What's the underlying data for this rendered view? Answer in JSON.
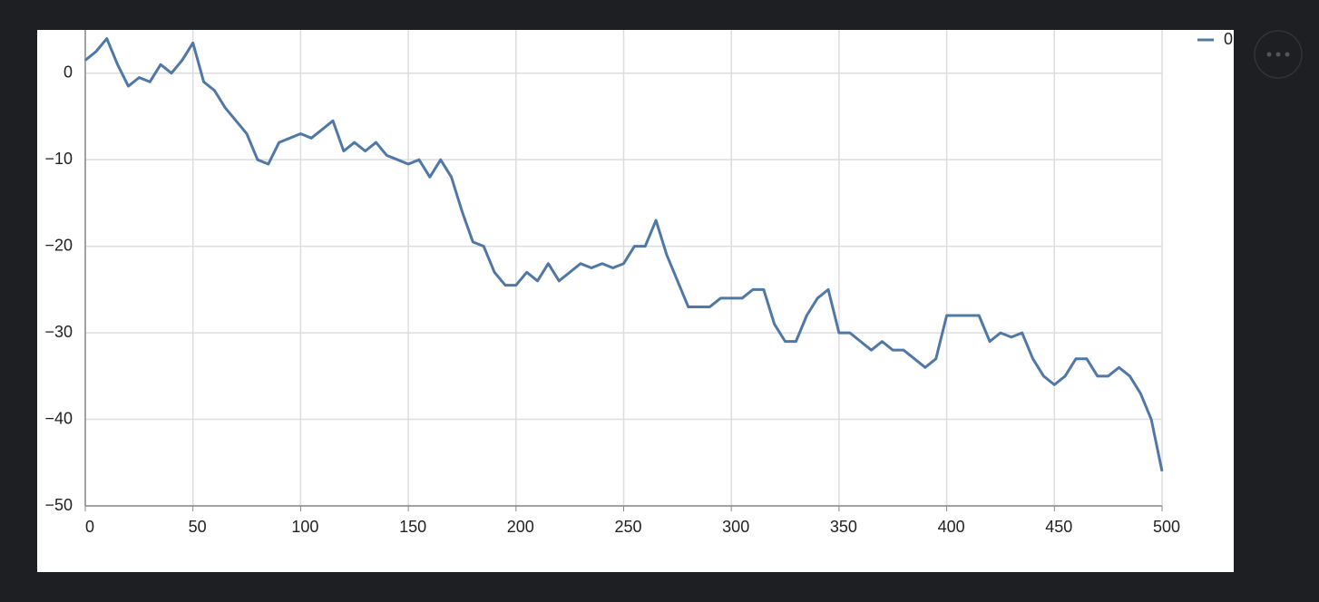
{
  "chart_data": {
    "type": "line",
    "x": [
      0,
      5,
      10,
      15,
      20,
      25,
      30,
      35,
      40,
      45,
      50,
      55,
      60,
      65,
      70,
      75,
      80,
      85,
      90,
      95,
      100,
      105,
      110,
      115,
      120,
      125,
      130,
      135,
      140,
      145,
      150,
      155,
      160,
      165,
      170,
      175,
      180,
      185,
      190,
      195,
      200,
      205,
      210,
      215,
      220,
      225,
      230,
      235,
      240,
      245,
      250,
      255,
      260,
      265,
      270,
      275,
      280,
      285,
      290,
      295,
      300,
      305,
      310,
      315,
      320,
      325,
      330,
      335,
      340,
      345,
      350,
      355,
      360,
      365,
      370,
      375,
      380,
      385,
      390,
      395,
      400,
      405,
      410,
      415,
      420,
      425,
      430,
      435,
      440,
      445,
      450,
      455,
      460,
      465,
      470,
      475,
      480,
      485,
      490,
      495,
      500
    ],
    "series": [
      {
        "name": "0",
        "color": "#5078a6",
        "values": [
          1.5,
          2.5,
          4,
          1,
          -1.5,
          -0.5,
          -1,
          1,
          0,
          1.5,
          3.5,
          -1,
          -2,
          -4,
          -5.5,
          -7,
          -10,
          -10.5,
          -8,
          -7.5,
          -7,
          -7.5,
          -6.5,
          -5.5,
          -9,
          -8,
          -9,
          -8,
          -9.5,
          -10,
          -10.5,
          -10,
          -12,
          -10,
          -12,
          -16,
          -19.5,
          -20,
          -23,
          -24.5,
          -24.5,
          -23,
          -24,
          -22,
          -24,
          -23,
          -22,
          -22.5,
          -22,
          -22.5,
          -22,
          -20,
          -20,
          -17,
          -21,
          -24,
          -27,
          -27,
          -27,
          -26,
          -26,
          -26,
          -25,
          -25,
          -29,
          -31,
          -31,
          -28,
          -26,
          -25,
          -30,
          -30,
          -31,
          -32,
          -31,
          -32,
          -32,
          -33,
          -34,
          -33,
          -28,
          -28,
          -28,
          -28,
          -31,
          -30,
          -30.5,
          -30,
          -33,
          -35,
          -36,
          -35,
          -33,
          -33,
          -35,
          -35,
          -34,
          -35,
          -37,
          -40,
          -46
        ]
      }
    ],
    "xlim": [
      0,
      500
    ],
    "ylim": [
      -50,
      5
    ],
    "xticks": [
      0,
      50,
      100,
      150,
      200,
      250,
      300,
      350,
      400,
      450,
      500
    ],
    "yticks": [
      {
        "value": -50,
        "label": "−50"
      },
      {
        "value": -40,
        "label": "−40"
      },
      {
        "value": -30,
        "label": "−30"
      },
      {
        "value": -20,
        "label": "−20"
      },
      {
        "value": -10,
        "label": "−10"
      },
      0
    ],
    "grid": true,
    "legend": "top-right"
  }
}
